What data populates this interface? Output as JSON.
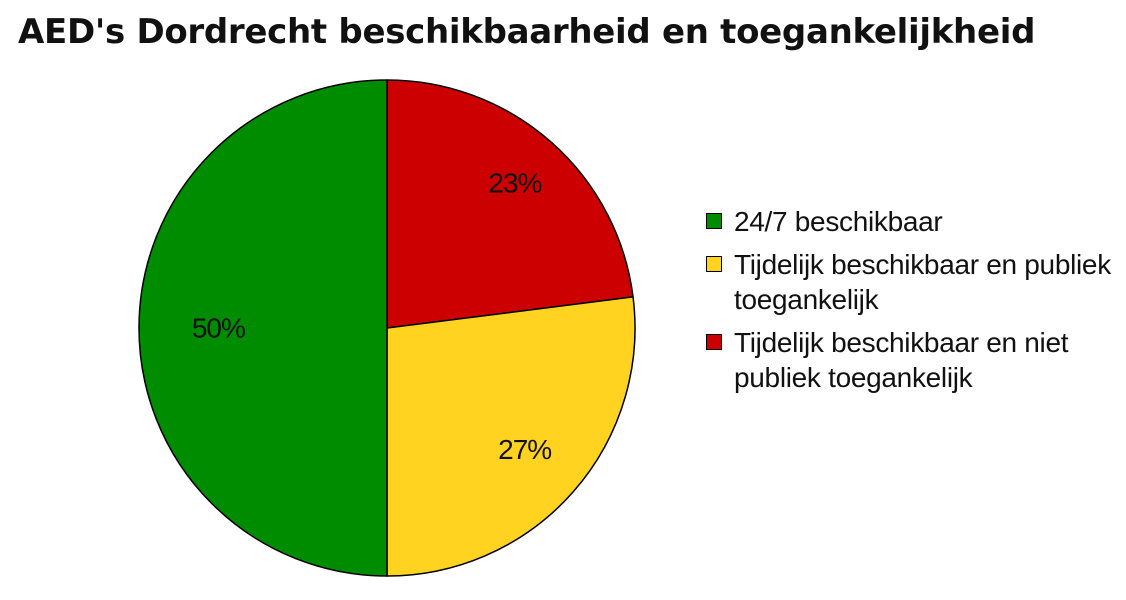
{
  "chart_data": {
    "type": "pie",
    "title": "AED's Dordrecht beschikbaarheid en toegankelijkheid",
    "categories": [
      "24/7 beschikbaar",
      "Tijdelijk beschikbaar en publiek toegankelijk",
      "Tijdelijk beschikbaar en niet publiek toegankelijk"
    ],
    "values": [
      50,
      27,
      23
    ],
    "labels": [
      "50%",
      "27%",
      "23%"
    ],
    "colors": [
      "#008c00",
      "#ffd320",
      "#cc0000"
    ],
    "legend": "right"
  }
}
